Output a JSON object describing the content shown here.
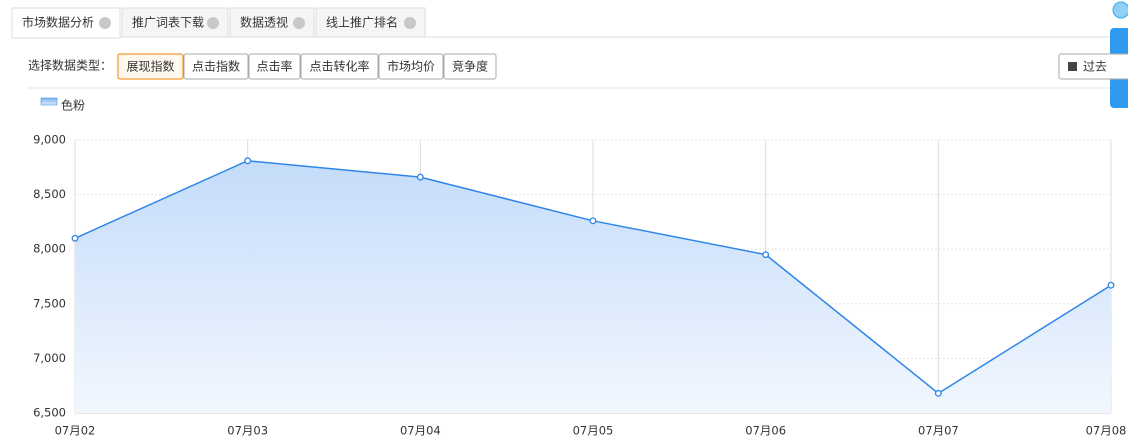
{
  "tabs": [
    "市场数据分析",
    "推广词表下载",
    "数据透视",
    "线上推广排名"
  ],
  "filter": {
    "label": "选择数据类型：",
    "options": [
      "展现指数",
      "点击指数",
      "点击率",
      "点击转化率",
      "市场均价",
      "竞争度"
    ],
    "range_button": "过去"
  },
  "chart_data": {
    "type": "area",
    "categories": [
      "07月02",
      "07月03",
      "07月04",
      "07月05",
      "07月06",
      "07月07",
      "07月08"
    ],
    "series": [
      {
        "name": "色粉",
        "color": "#2f86e8",
        "values": [
          8100,
          8810,
          8660,
          8260,
          7950,
          6680,
          7670
        ]
      }
    ],
    "ylim": [
      6500,
      9000
    ],
    "yticks": [
      {
        "value": 6500,
        "label": "6,500"
      },
      {
        "value": 7000,
        "label": "7,000"
      },
      {
        "value": 7500,
        "label": "7,500"
      },
      {
        "value": 8000,
        "label": "8,000"
      },
      {
        "value": 8500,
        "label": "8,500"
      },
      {
        "value": 9000,
        "label": "9,000"
      }
    ],
    "grid": true,
    "legend": "top-left"
  }
}
